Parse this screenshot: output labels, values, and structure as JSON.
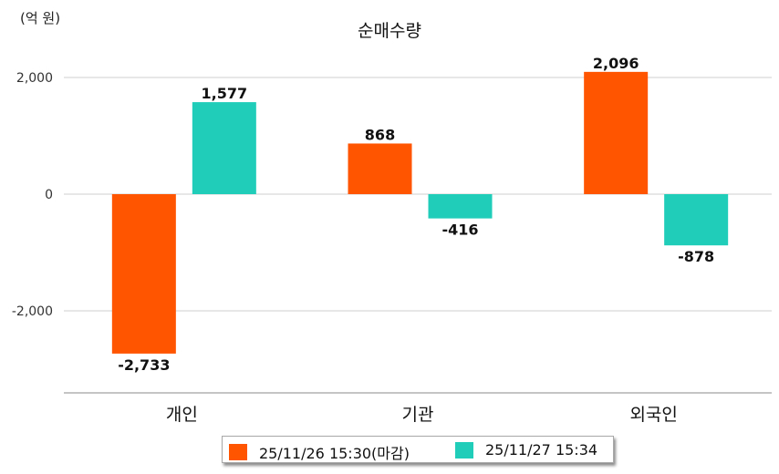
{
  "chart_data": {
    "type": "bar",
    "title": "순매수량",
    "unit_label": "(억 원)",
    "categories": [
      "개인",
      "기관",
      "외국인"
    ],
    "series": [
      {
        "name": "25/11/26 15:30(마감)",
        "color": "#ff5500",
        "values": [
          -2733,
          868,
          2096
        ]
      },
      {
        "name": "25/11/27 15:34",
        "color": "#1fcdb9",
        "values": [
          1577,
          -416,
          -878
        ]
      }
    ],
    "value_labels": [
      [
        "-2,733",
        "868",
        "2,096"
      ],
      [
        "1,577",
        "-416",
        "-878"
      ]
    ],
    "y_ticks": [
      2000,
      0,
      -2000
    ],
    "y_tick_labels": [
      "2,000",
      "0",
      "-2,000"
    ],
    "ylim": [
      -3400,
      2000
    ],
    "grid": true,
    "legend_position": "bottom-center"
  }
}
